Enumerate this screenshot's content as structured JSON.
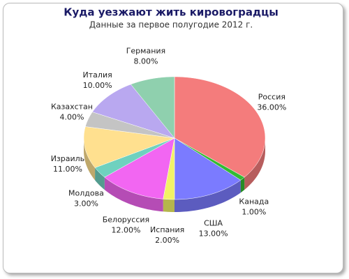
{
  "chart_data": {
    "type": "pie",
    "title": "Куда уезжают жить кировоградцы",
    "subtitle": "Данные за первое полугодие 2012 г.",
    "categories": [
      "Россия",
      "Канада",
      "США",
      "Испания",
      "Белоруссия",
      "Молдова",
      "Израиль",
      "Казахстан",
      "Италия",
      "Германия"
    ],
    "values": [
      36,
      1,
      13,
      2,
      12,
      3,
      11,
      4,
      10,
      8
    ],
    "value_labels": [
      "36.00%",
      "1.00%",
      "13.00%",
      "2.00%",
      "12.00%",
      "3.00%",
      "11.00%",
      "4.00%",
      "10.00%",
      "8.00%"
    ],
    "colors": [
      "#f47c7c",
      "#33bb33",
      "#7b7bff",
      "#f2f266",
      "#f266f2",
      "#6fd1bf",
      "#ffe08f",
      "#c4c4c4",
      "#b9a8f0",
      "#8fd0ae"
    ]
  }
}
